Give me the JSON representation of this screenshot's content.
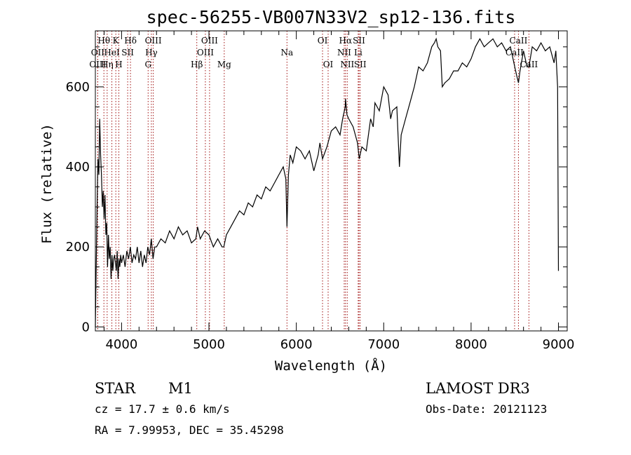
{
  "title": "spec-56255-VB007N33V2_sp12-136.fits",
  "chart_data": {
    "type": "line",
    "xlabel": "Wavelength (Å)",
    "ylabel": "Flux (relative)",
    "xlim": [
      3700,
      9100
    ],
    "ylim": [
      -10,
      740
    ],
    "x_ticks": [
      4000,
      5000,
      6000,
      7000,
      8000,
      9000
    ],
    "y_ticks": [
      0,
      200,
      400,
      600
    ],
    "grid": false,
    "series": [
      {
        "x": [
          3700,
          3710,
          3720,
          3730,
          3740,
          3750,
          3760,
          3770,
          3780,
          3790,
          3800,
          3810,
          3820,
          3830,
          3840,
          3850,
          3860,
          3870,
          3880,
          3890,
          3900,
          3910,
          3920,
          3930,
          3940,
          3950,
          3960,
          3970,
          3980,
          3990,
          4000,
          4020,
          4040,
          4060,
          4080,
          4100,
          4120,
          4140,
          4160,
          4180,
          4200,
          4220,
          4240,
          4260,
          4280,
          4300,
          4320,
          4340,
          4360,
          4380,
          4400,
          4450,
          4500,
          4550,
          4600,
          4650,
          4700,
          4750,
          4800,
          4850,
          4870,
          4900,
          4950,
          5000,
          5050,
          5100,
          5150,
          5170,
          5200,
          5250,
          5300,
          5350,
          5400,
          5450,
          5500,
          5550,
          5600,
          5650,
          5700,
          5750,
          5800,
          5850,
          5880,
          5893,
          5910,
          5930,
          5960,
          6000,
          6050,
          6100,
          6150,
          6200,
          6250,
          6270,
          6300,
          6350,
          6400,
          6450,
          6500,
          6530,
          6560,
          6563,
          6580,
          6600,
          6650,
          6700,
          6720,
          6750,
          6800,
          6850,
          6880,
          6900,
          6950,
          7000,
          7050,
          7080,
          7100,
          7150,
          7180,
          7200,
          7250,
          7300,
          7350,
          7400,
          7450,
          7500,
          7550,
          7580,
          7600,
          7620,
          7650,
          7670,
          7700,
          7750,
          7800,
          7850,
          7900,
          7950,
          8000,
          8050,
          8100,
          8150,
          8200,
          8250,
          8300,
          8350,
          8400,
          8450,
          8500,
          8520,
          8542,
          8560,
          8600,
          8640,
          8662,
          8700,
          8750,
          8800,
          8850,
          8900,
          8950,
          8970,
          8990,
          9000
        ],
        "y": [
          0,
          150,
          300,
          420,
          380,
          520,
          430,
          380,
          300,
          340,
          270,
          330,
          230,
          260,
          150,
          230,
          170,
          200,
          120,
          180,
          140,
          170,
          180,
          160,
          140,
          190,
          120,
          170,
          150,
          180,
          160,
          180,
          150,
          190,
          170,
          200,
          160,
          180,
          170,
          200,
          160,
          190,
          150,
          180,
          160,
          200,
          180,
          220,
          170,
          200,
          200,
          220,
          210,
          240,
          220,
          250,
          230,
          240,
          210,
          220,
          250,
          220,
          240,
          230,
          200,
          220,
          200,
          200,
          230,
          250,
          270,
          290,
          280,
          310,
          300,
          330,
          320,
          350,
          340,
          360,
          380,
          400,
          370,
          250,
          380,
          430,
          410,
          450,
          440,
          420,
          440,
          390,
          430,
          460,
          420,
          450,
          490,
          500,
          480,
          520,
          550,
          570,
          530,
          520,
          500,
          460,
          420,
          450,
          440,
          520,
          500,
          560,
          540,
          600,
          580,
          520,
          540,
          550,
          400,
          480,
          520,
          560,
          600,
          650,
          640,
          660,
          700,
          710,
          720,
          700,
          690,
          600,
          610,
          620,
          640,
          640,
          660,
          650,
          670,
          700,
          720,
          700,
          710,
          720,
          700,
          710,
          690,
          700,
          650,
          630,
          610,
          640,
          690,
          650,
          650,
          700,
          690,
          710,
          690,
          700,
          660,
          690,
          600,
          140
        ]
      }
    ]
  },
  "lines": [
    {
      "label": "Hθ",
      "x": 3798,
      "row": 0,
      "color": "#a01010"
    },
    {
      "label": "OII",
      "x": 3727,
      "row": 1,
      "color": "#a01010"
    },
    {
      "label": "OIII",
      "x": 3727,
      "row": 2,
      "color": "#a01010"
    },
    {
      "label": "HeI",
      "x": 3889,
      "row": 1,
      "color": "#a01010"
    },
    {
      "label": "Hη",
      "x": 3835,
      "row": 2,
      "color": "#a01010"
    },
    {
      "label": "K",
      "x": 3934,
      "row": 0,
      "color": "#a01010"
    },
    {
      "label": "SII",
      "x": 4070,
      "row": 1,
      "color": "#a01010"
    },
    {
      "label": "H",
      "x": 3969,
      "row": 2,
      "color": "#a01010"
    },
    {
      "label": "Hδ",
      "x": 4102,
      "row": 0,
      "color": "#a01010"
    },
    {
      "label": "OIII",
      "x": 4363,
      "row": 0,
      "color": "#a01010"
    },
    {
      "label": "Hγ",
      "x": 4341,
      "row": 1,
      "color": "#a01010"
    },
    {
      "label": "G",
      "x": 4304,
      "row": 2,
      "color": "#a01010"
    },
    {
      "label": "OIII",
      "x": 5007,
      "row": 0,
      "color": "#a01010"
    },
    {
      "label": "OIII",
      "x": 4959,
      "row": 1,
      "color": "#a01010"
    },
    {
      "label": "Hβ",
      "x": 4861,
      "row": 2,
      "color": "#a01010"
    },
    {
      "label": "Mg",
      "x": 5175,
      "row": 2,
      "color": "#a01010"
    },
    {
      "label": "Na",
      "x": 5893,
      "row": 1,
      "color": "#a01010"
    },
    {
      "label": "OI",
      "x": 6300,
      "row": 0,
      "color": "#a01010"
    },
    {
      "label": "OI",
      "x": 6364,
      "row": 2,
      "color": "#a01010"
    },
    {
      "label": "Hα",
      "x": 6563,
      "row": 0,
      "color": "#a01010"
    },
    {
      "label": "SII",
      "x": 6717,
      "row": 0,
      "color": "#a01010"
    },
    {
      "label": "NII",
      "x": 6548,
      "row": 1,
      "color": "#a01010"
    },
    {
      "label": "Li",
      "x": 6708,
      "row": 1,
      "color": "#a01010"
    },
    {
      "label": "NII",
      "x": 6583,
      "row": 2,
      "color": "#a01010"
    },
    {
      "label": "SII",
      "x": 6731,
      "row": 2,
      "color": "#a01010"
    },
    {
      "label": "CaII",
      "x": 8542,
      "row": 0,
      "color": "#a01010"
    },
    {
      "label": "CaII",
      "x": 8498,
      "row": 1,
      "color": "#a01010"
    },
    {
      "label": "CaII",
      "x": 8662,
      "row": 2,
      "color": "#a01010"
    }
  ],
  "info": {
    "star_label": "STAR",
    "class_label": "M1",
    "survey": "LAMOST DR3",
    "cz": "cz = 17.7 ± 0.6 km/s",
    "obs_date": "Obs-Date: 20121123",
    "coords": "RA =   7.99953, DEC =  35.45298"
  }
}
